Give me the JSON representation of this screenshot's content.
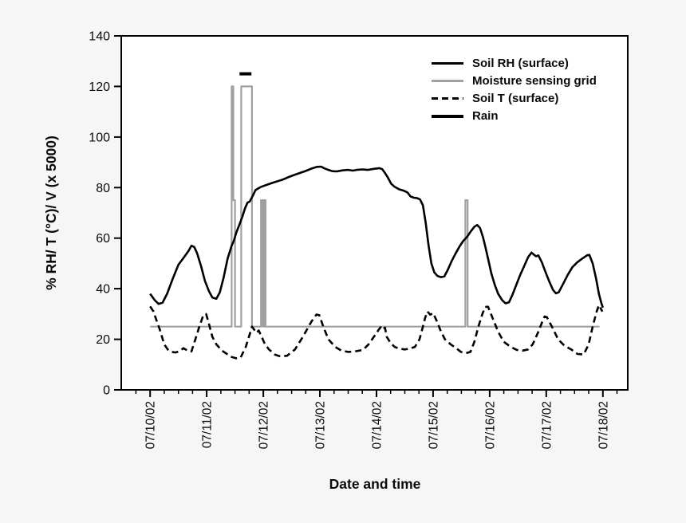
{
  "chart_data": {
    "type": "line",
    "title": "",
    "xlabel": "Date and time",
    "ylabel": "% RH/ T (°C)/ V (x 5000)",
    "grid": false,
    "legend_position": "upper right",
    "plot_background": "#ffffff",
    "page_background": "#f6f6f7",
    "frame_color": "#000000",
    "ylim": [
      0,
      140
    ],
    "y_ticks": [
      0,
      20,
      40,
      60,
      80,
      100,
      120,
      140
    ],
    "xlim_days": [
      -0.51,
      8.44
    ],
    "x_tick_days": [
      0,
      1,
      2,
      3,
      4,
      5,
      6,
      7,
      8
    ],
    "x_tick_labels": [
      "07/10/02",
      "07/11/02",
      "07/12/02",
      "07/13/02",
      "07/14/02",
      "07/15/02",
      "07/16/02",
      "07/17/02",
      "07/18/02"
    ],
    "x_minor_step_days": 0.25,
    "series": [
      {
        "name": "Moisture sensing grid",
        "style": "solid",
        "color": "#a0a0a0",
        "width": 2.2,
        "points": [
          [
            0,
            25
          ],
          [
            1.44,
            25
          ],
          [
            1.44,
            120
          ],
          [
            1.47,
            120
          ],
          [
            1.47,
            75
          ],
          [
            1.5,
            75
          ],
          [
            1.5,
            25
          ],
          [
            1.61,
            25
          ],
          [
            1.61,
            120
          ],
          [
            1.8,
            120
          ],
          [
            1.8,
            25
          ],
          [
            1.96,
            25
          ],
          [
            1.96,
            75
          ],
          [
            1.99,
            75
          ],
          [
            1.99,
            25
          ],
          [
            2.01,
            25
          ],
          [
            2.01,
            75
          ],
          [
            2.04,
            75
          ],
          [
            2.04,
            25
          ],
          [
            5.57,
            25
          ],
          [
            5.57,
            75
          ],
          [
            5.61,
            75
          ],
          [
            5.61,
            25
          ],
          [
            7.94,
            25
          ]
        ]
      },
      {
        "name": "Soil T (surface)",
        "style": "dashed",
        "color": "#000000",
        "width": 2.6,
        "dash": "8 5",
        "points": [
          [
            0,
            33
          ],
          [
            0.06,
            31
          ],
          [
            0.12,
            27
          ],
          [
            0.17,
            24
          ],
          [
            0.25,
            18
          ],
          [
            0.31,
            16
          ],
          [
            0.38,
            15
          ],
          [
            0.45,
            14.8
          ],
          [
            0.52,
            15.3
          ],
          [
            0.59,
            16.5
          ],
          [
            0.66,
            15.5
          ],
          [
            0.73,
            15.2
          ],
          [
            0.8,
            20
          ],
          [
            0.87,
            25
          ],
          [
            0.94,
            29.5
          ],
          [
            0.99,
            30
          ],
          [
            1.04,
            26
          ],
          [
            1.1,
            21
          ],
          [
            1.17,
            18
          ],
          [
            1.27,
            15.5
          ],
          [
            1.37,
            14
          ],
          [
            1.44,
            13
          ],
          [
            1.52,
            12.5
          ],
          [
            1.6,
            12.8
          ],
          [
            1.69,
            17
          ],
          [
            1.76,
            22
          ],
          [
            1.8,
            25
          ],
          [
            1.85,
            23.5
          ],
          [
            1.88,
            22.5
          ],
          [
            1.92,
            23.5
          ],
          [
            1.97,
            21
          ],
          [
            2.03,
            18
          ],
          [
            2.1,
            16
          ],
          [
            2.2,
            14
          ],
          [
            2.3,
            13.2
          ],
          [
            2.42,
            13.5
          ],
          [
            2.56,
            16
          ],
          [
            2.7,
            21
          ],
          [
            2.85,
            27
          ],
          [
            2.94,
            29.8
          ],
          [
            2.99,
            29.5
          ],
          [
            3.06,
            25
          ],
          [
            3.15,
            20
          ],
          [
            3.27,
            17
          ],
          [
            3.38,
            15.5
          ],
          [
            3.5,
            15
          ],
          [
            3.62,
            15.2
          ],
          [
            3.76,
            15.8
          ],
          [
            3.86,
            18
          ],
          [
            3.97,
            21.5
          ],
          [
            4.03,
            23.5
          ],
          [
            4.08,
            25
          ],
          [
            4.12,
            24
          ],
          [
            4.15,
            24.6
          ],
          [
            4.18,
            21
          ],
          [
            4.25,
            18.5
          ],
          [
            4.32,
            17
          ],
          [
            4.4,
            16.3
          ],
          [
            4.5,
            16
          ],
          [
            4.6,
            16.4
          ],
          [
            4.68,
            17
          ],
          [
            4.76,
            20
          ],
          [
            4.82,
            25
          ],
          [
            4.86,
            28.5
          ],
          [
            4.9,
            31
          ],
          [
            4.95,
            29.7
          ],
          [
            5,
            30.4
          ],
          [
            5.07,
            27
          ],
          [
            5.14,
            23
          ],
          [
            5.21,
            20
          ],
          [
            5.31,
            18
          ],
          [
            5.41,
            16.5
          ],
          [
            5.49,
            15
          ],
          [
            5.58,
            14.5
          ],
          [
            5.66,
            15
          ],
          [
            5.73,
            19
          ],
          [
            5.8,
            25
          ],
          [
            5.87,
            30
          ],
          [
            5.92,
            32.8
          ],
          [
            5.97,
            32.9
          ],
          [
            6.06,
            28
          ],
          [
            6.15,
            23
          ],
          [
            6.25,
            19
          ],
          [
            6.37,
            17
          ],
          [
            6.48,
            15.8
          ],
          [
            6.58,
            15.5
          ],
          [
            6.68,
            16
          ],
          [
            6.76,
            18
          ],
          [
            6.86,
            23
          ],
          [
            6.93,
            27
          ],
          [
            6.97,
            29
          ],
          [
            7.01,
            28.8
          ],
          [
            7.1,
            25
          ],
          [
            7.21,
            20
          ],
          [
            7.32,
            17.5
          ],
          [
            7.44,
            16
          ],
          [
            7.55,
            14.2
          ],
          [
            7.66,
            14
          ],
          [
            7.75,
            18
          ],
          [
            7.82,
            25
          ],
          [
            7.89,
            31
          ],
          [
            7.93,
            33.5
          ],
          [
            7.99,
            31
          ]
        ]
      },
      {
        "name": "Soil RH (surface)",
        "style": "solid",
        "color": "#000000",
        "width": 2.6,
        "points": [
          [
            0,
            38
          ],
          [
            0.08,
            35.5
          ],
          [
            0.15,
            34
          ],
          [
            0.22,
            34.5
          ],
          [
            0.3,
            38
          ],
          [
            0.4,
            44
          ],
          [
            0.5,
            49.5
          ],
          [
            0.6,
            52.5
          ],
          [
            0.68,
            55
          ],
          [
            0.73,
            57
          ],
          [
            0.78,
            56.5
          ],
          [
            0.83,
            54
          ],
          [
            0.9,
            49
          ],
          [
            0.97,
            43
          ],
          [
            1.04,
            39
          ],
          [
            1.1,
            36.5
          ],
          [
            1.17,
            36
          ],
          [
            1.23,
            38.5
          ],
          [
            1.3,
            44.5
          ],
          [
            1.37,
            52
          ],
          [
            1.44,
            57
          ],
          [
            1.48,
            59
          ],
          [
            1.52,
            62
          ],
          [
            1.58,
            65.5
          ],
          [
            1.63,
            68.5
          ],
          [
            1.68,
            72
          ],
          [
            1.72,
            74
          ],
          [
            1.76,
            74.5
          ],
          [
            1.82,
            77
          ],
          [
            1.86,
            79
          ],
          [
            1.95,
            80.2
          ],
          [
            2.05,
            81
          ],
          [
            2.15,
            81.8
          ],
          [
            2.25,
            82.5
          ],
          [
            2.35,
            83.2
          ],
          [
            2.45,
            84.2
          ],
          [
            2.55,
            85
          ],
          [
            2.65,
            85.8
          ],
          [
            2.75,
            86.6
          ],
          [
            2.85,
            87.5
          ],
          [
            2.95,
            88.2
          ],
          [
            3.02,
            88.3
          ],
          [
            3.08,
            87.6
          ],
          [
            3.15,
            87
          ],
          [
            3.22,
            86.5
          ],
          [
            3.3,
            86.4
          ],
          [
            3.4,
            86.8
          ],
          [
            3.5,
            87
          ],
          [
            3.58,
            86.7
          ],
          [
            3.65,
            87
          ],
          [
            3.75,
            87.2
          ],
          [
            3.85,
            87
          ],
          [
            3.95,
            87.4
          ],
          [
            4.05,
            87.7
          ],
          [
            4.1,
            87.3
          ],
          [
            4.15,
            85.8
          ],
          [
            4.2,
            84
          ],
          [
            4.26,
            81.5
          ],
          [
            4.32,
            80.3
          ],
          [
            4.4,
            79.3
          ],
          [
            4.48,
            78.8
          ],
          [
            4.55,
            78
          ],
          [
            4.6,
            76.5
          ],
          [
            4.66,
            76
          ],
          [
            4.72,
            75.8
          ],
          [
            4.77,
            75.3
          ],
          [
            4.82,
            73
          ],
          [
            4.87,
            66
          ],
          [
            4.92,
            57
          ],
          [
            4.97,
            50
          ],
          [
            5.02,
            46.5
          ],
          [
            5.08,
            45
          ],
          [
            5.14,
            44.6
          ],
          [
            5.2,
            44.9
          ],
          [
            5.26,
            47.5
          ],
          [
            5.33,
            51
          ],
          [
            5.4,
            54
          ],
          [
            5.47,
            56.8
          ],
          [
            5.53,
            58.8
          ],
          [
            5.6,
            60.5
          ],
          [
            5.67,
            62.8
          ],
          [
            5.73,
            64.5
          ],
          [
            5.78,
            65.2
          ],
          [
            5.83,
            64
          ],
          [
            5.88,
            60.5
          ],
          [
            5.93,
            56
          ],
          [
            5.98,
            51
          ],
          [
            6.03,
            46
          ],
          [
            6.09,
            41.5
          ],
          [
            6.15,
            38
          ],
          [
            6.22,
            35.5
          ],
          [
            6.28,
            34.2
          ],
          [
            6.34,
            34.6
          ],
          [
            6.4,
            37.5
          ],
          [
            6.47,
            41.5
          ],
          [
            6.54,
            45.5
          ],
          [
            6.61,
            49
          ],
          [
            6.68,
            52.5
          ],
          [
            6.74,
            54.3
          ],
          [
            6.78,
            53.5
          ],
          [
            6.82,
            52.8
          ],
          [
            6.86,
            53.2
          ],
          [
            6.92,
            50.5
          ],
          [
            6.98,
            47
          ],
          [
            7.05,
            43
          ],
          [
            7.12,
            39.5
          ],
          [
            7.17,
            38.2
          ],
          [
            7.22,
            38.6
          ],
          [
            7.3,
            42
          ],
          [
            7.38,
            45.5
          ],
          [
            7.46,
            48.5
          ],
          [
            7.55,
            50.5
          ],
          [
            7.63,
            51.8
          ],
          [
            7.72,
            53.2
          ],
          [
            7.76,
            53.4
          ],
          [
            7.82,
            50
          ],
          [
            7.88,
            44
          ],
          [
            7.93,
            38
          ],
          [
            7.97,
            34.5
          ],
          [
            8,
            32.5
          ]
        ]
      },
      {
        "name": "Rain",
        "style": "solid",
        "color": "#000000",
        "width": 4,
        "points": [
          [
            1.58,
            125
          ],
          [
            1.79,
            125
          ]
        ]
      }
    ],
    "legend_order": [
      "Soil RH (surface)",
      "Moisture sensing grid",
      "Soil T (surface)",
      "Rain"
    ]
  }
}
